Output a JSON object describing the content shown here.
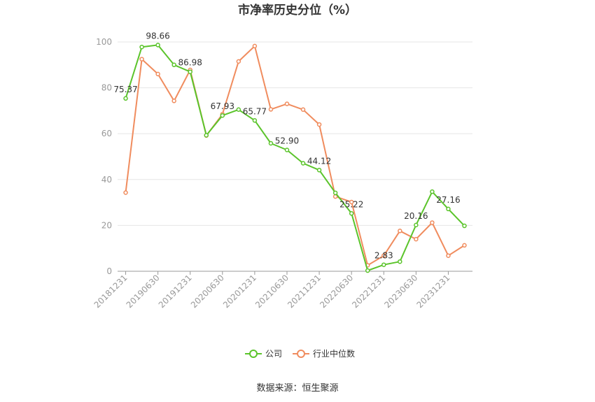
{
  "chart_data": {
    "type": "line",
    "title": "市净率历史分位（%）",
    "xlabel": "",
    "ylabel": "",
    "ylim": [
      0,
      100
    ],
    "yticks": [
      "0",
      "20",
      "40",
      "60",
      "80",
      "100"
    ],
    "grid": true,
    "legend_position": "bottom",
    "categories": [
      "20181231",
      "20190331",
      "20190630",
      "20190930",
      "20191231",
      "20200331",
      "20200630",
      "20200930",
      "20201231",
      "20210331",
      "20210630",
      "20210930",
      "20211231",
      "20220331",
      "20220630",
      "20220930",
      "20221231",
      "20230331",
      "20230630",
      "20230930",
      "20231231",
      "20240331"
    ],
    "xtick_labels": [
      "20181231",
      "20190630",
      "20191231",
      "20200630",
      "20201231",
      "20210630",
      "20211231",
      "20220630",
      "20221231",
      "20230630",
      "20231231"
    ],
    "series": [
      {
        "name": "公司",
        "color": "#5bc42b",
        "values": [
          75.37,
          97.8,
          98.66,
          90.0,
          86.98,
          59.3,
          67.93,
          70.5,
          65.77,
          55.8,
          52.9,
          47.1,
          44.12,
          34.2,
          25.22,
          0.3,
          2.83,
          4.2,
          20.16,
          34.7,
          27.16,
          19.8
        ],
        "labels": [
          "75.37",
          "",
          "98.66",
          "",
          "86.98",
          "",
          "67.93",
          "",
          "65.77",
          "",
          "52.90",
          "",
          "44.12",
          "",
          "25.22",
          "",
          "2.83",
          "",
          "20.16",
          "",
          "27.16",
          ""
        ]
      },
      {
        "name": "行业中位数",
        "color": "#f08c5e",
        "values": [
          34.3,
          92.5,
          86.0,
          74.3,
          87.8,
          59.2,
          68.5,
          91.5,
          98.2,
          70.6,
          73.0,
          70.5,
          64.0,
          32.6,
          30.2,
          2.6,
          6.8,
          17.6,
          14.0,
          21.2,
          6.8,
          11.3
        ]
      }
    ],
    "source": "数据来源：恒生聚源"
  }
}
